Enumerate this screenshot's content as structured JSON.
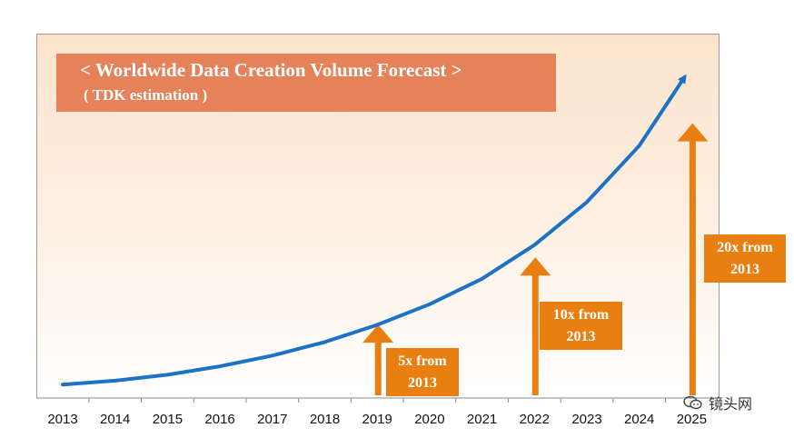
{
  "chart_data": {
    "type": "line",
    "title": "< Worldwide Data Creation Volume Forecast >",
    "subtitle": "( TDK estimation )",
    "x": [
      "2013",
      "2014",
      "2015",
      "2016",
      "2017",
      "2018",
      "2019",
      "2020",
      "2021",
      "2022",
      "2023",
      "2024",
      "2025"
    ],
    "series": [
      {
        "values": [
          1.0,
          1.29,
          1.73,
          2.36,
          3.16,
          4.17,
          5.45,
          6.99,
          8.88,
          11.4,
          14.6,
          18.8,
          23.9
        ]
      }
    ],
    "ylim": [
      0,
      23.9
    ],
    "grid": false,
    "legend": "none",
    "annotations": [
      {
        "year": "2019",
        "text_line1": "5x from",
        "text_line2": "2013",
        "multiple": 5
      },
      {
        "year": "2022",
        "text_line1": "10x from",
        "text_line2": "2013",
        "multiple": 10
      },
      {
        "year": "2025",
        "text_line1": "20x from",
        "text_line2": "2013",
        "multiple": 20
      }
    ],
    "colors": {
      "line": "#1c72c4",
      "arrow": "#ea7f11",
      "title_box": "#e58259"
    }
  },
  "watermark": {
    "text": "镜头网"
  }
}
